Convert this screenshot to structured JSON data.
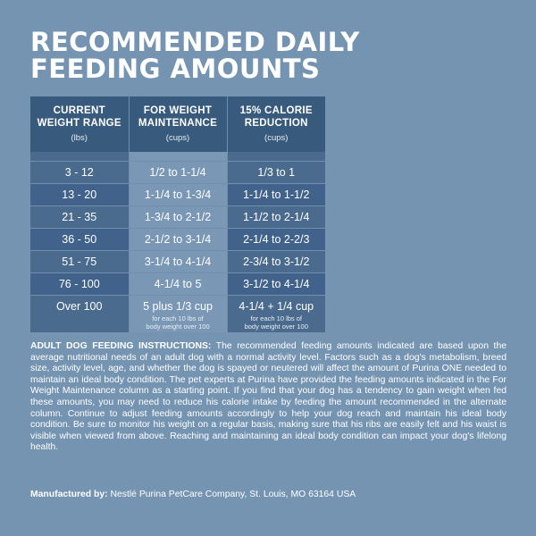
{
  "title": {
    "line1": "RECOMMENDED DAILY",
    "line2": "FEEDING AMOUNTS"
  },
  "table": {
    "headers": [
      {
        "label_line1": "CURRENT",
        "label_line2": "WEIGHT RANGE",
        "unit": "(lbs)"
      },
      {
        "label_line1": "FOR WEIGHT",
        "label_line2": "MAINTENANCE",
        "unit": "(cups)"
      },
      {
        "label_line1": "15% CALORIE",
        "label_line2": "REDUCTION",
        "unit": "(cups)"
      }
    ],
    "rows": [
      {
        "weight": "3 - 12",
        "maintenance": "1/2 to 1-1/4",
        "reduction": "1/3 to 1"
      },
      {
        "weight": "13 - 20",
        "maintenance": "1-1/4 to 1-3/4",
        "reduction": "1-1/4 to 1-1/2"
      },
      {
        "weight": "21 - 35",
        "maintenance": "1-3/4 to 2-1/2",
        "reduction": "1-1/2 to 2-1/4"
      },
      {
        "weight": "36 - 50",
        "maintenance": "2-1/2 to 3-1/4",
        "reduction": "2-1/4 to 2-2/3"
      },
      {
        "weight": "51 - 75",
        "maintenance": "3-1/4 to 4-1/4",
        "reduction": "2-3/4 to 3-1/2"
      },
      {
        "weight": "76 - 100",
        "maintenance": "4-1/4 to 5",
        "reduction": "3-1/2 to 4-1/4"
      },
      {
        "weight": "Over 100",
        "maintenance": "5 plus 1/3 cup",
        "reduction": "4-1/4 + 1/4 cup"
      }
    ],
    "last_row_notes": {
      "maintenance_line1": "for each 10 lbs of",
      "maintenance_line2": "body weight over 100",
      "reduction_line1": "for each 10 lbs of",
      "reduction_line2": "body weight over 100"
    }
  },
  "instructions": {
    "heading": "ADULT DOG FEEDING INSTRUCTIONS:",
    "body": "The recommended feeding amounts indicated are based upon the average nutritional needs of an adult dog with a normal activity level. Factors such as a dog's metabolism, breed size, activity level, age, and whether the dog is spayed or neutered will affect the amount of Purina ONE needed to maintain an ideal body condition. The pet experts at Purina have provided the feeding amounts indicated in the For Weight Maintenance column as a starting point. If you find that your dog has a tendency to gain weight when fed these amounts, you may need to reduce his calorie intake by feeding the amount recommended in the alternate column. Continue to adjust feeding amounts accordingly to help your dog reach and maintain his ideal body condition. Be sure to monitor his weight on a regular basis, making sure that his ribs are easily felt and his waist is visible when viewed from above. Reaching and maintaining an ideal body condition can impact your dog's lifelong health."
  },
  "manufacturer": {
    "label": "Manufactured by:",
    "value": "Nestlé Purina PetCare Company, St. Louis, MO 63164 USA"
  },
  "colors": {
    "background": "#7594b1",
    "header_bg": "#385a7d",
    "dark_cell": "#4a6b8d",
    "light_cell": "#7a98b5",
    "text": "#ffffff"
  }
}
